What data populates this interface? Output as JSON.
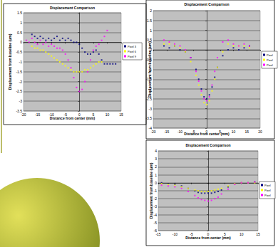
{
  "chart_data": [
    {
      "type": "scatter",
      "title": "Displacement Comparison",
      "x_label": "Distance from center (mm)",
      "y_label": "Displacement from baseline (um)",
      "xlim": [
        -20,
        15
      ],
      "xticks": [
        -20,
        -15,
        -10,
        -5,
        0,
        5,
        10,
        15
      ],
      "ylim": [
        -3.5,
        1.5
      ],
      "yticks": [
        -3.5,
        -3,
        -2.5,
        -2,
        -1.5,
        -1,
        -0.5,
        0,
        0.5,
        1,
        1.5
      ],
      "grid": true,
      "legend": "right",
      "series": [
        {
          "name": "Pixel 3",
          "color": "#000080",
          "x": [
            -17,
            -16,
            -15,
            -14,
            -13,
            -12,
            -11,
            -10,
            -9,
            -8,
            -7,
            -6,
            -5,
            -4,
            -3,
            -2,
            -1,
            0,
            1,
            2,
            3,
            4,
            5,
            6,
            7,
            8,
            9,
            10,
            11,
            12,
            13
          ],
          "values": [
            0.4,
            0.3,
            0.2,
            0.3,
            0.2,
            0.1,
            0.2,
            0.1,
            0.2,
            0.3,
            0.1,
            0.2,
            0.1,
            0.2,
            0.1,
            0.0,
            0.0,
            -0.1,
            -0.3,
            -0.5,
            -0.6,
            -0.6,
            -0.5,
            -0.4,
            -0.6,
            -0.9,
            -1.1,
            -1.1,
            -1.1,
            -1.1,
            -1.1
          ]
        },
        {
          "name": "Pixel 6",
          "color": "#FFFF00",
          "x": [
            -17,
            -16,
            -15,
            -14,
            -13,
            -12,
            -11,
            -10,
            -9,
            -8,
            -7,
            -6,
            -5,
            -4,
            -3,
            -2,
            -1,
            0,
            1,
            2,
            3,
            4,
            5,
            6,
            7,
            8
          ],
          "values": [
            -0.2,
            -0.3,
            -0.3,
            -0.4,
            -0.4,
            -0.5,
            -0.6,
            -0.7,
            -0.8,
            -0.9,
            -1.0,
            -1.1,
            -1.2,
            -1.3,
            -1.4,
            -1.5,
            -1.5,
            -1.5,
            -1.5,
            -1.4,
            -1.4,
            -1.3,
            -1.2,
            -1.1,
            -1.0,
            -1.0
          ]
        },
        {
          "name": "Pixel 9",
          "color": "#FF00FF",
          "x": [
            -19,
            -18,
            -17,
            -16,
            -15,
            -14,
            -13,
            -12,
            -11,
            -10,
            -9,
            -8,
            -7,
            -6,
            -5,
            -4,
            -3,
            -2,
            -1,
            0,
            1,
            2,
            3,
            4,
            5,
            6,
            7,
            8,
            9,
            10
          ],
          "values": [
            0.1,
            0.0,
            0.2,
            0.0,
            -0.1,
            0.1,
            -0.1,
            0.0,
            -0.2,
            -0.1,
            -0.2,
            -0.3,
            -0.3,
            -0.4,
            -0.6,
            -0.9,
            -1.3,
            -1.8,
            -2.3,
            -2.5,
            -2.4,
            -2.0,
            -1.5,
            -0.9,
            -0.4,
            -0.2,
            -0.1,
            0.1,
            0.3,
            0.6
          ]
        }
      ]
    },
    {
      "type": "scatter",
      "title": "Displacement Comparison",
      "x_label": "Distance from center (mm)",
      "y_label": "Displacement from baseline (um)",
      "xlim": [
        -20,
        20
      ],
      "xticks": [
        -20,
        -15,
        -10,
        -5,
        0,
        5,
        10,
        15,
        20
      ],
      "ylim": [
        -4,
        2
      ],
      "yticks": [
        -4,
        -3.5,
        -3,
        -2.5,
        -2,
        -1.5,
        -1,
        -0.5,
        0,
        0.5,
        1,
        1.5,
        2
      ],
      "grid": true,
      "legend": "right",
      "series": [
        {
          "name": "Pixel",
          "color": "#000080",
          "x": [
            -16,
            -14,
            -12,
            -10,
            -8,
            -6,
            -4,
            -3,
            -2,
            -1,
            0,
            1,
            2,
            3,
            4,
            6,
            8,
            10,
            12,
            14,
            16
          ],
          "values": [
            0.2,
            0.1,
            0.2,
            0.0,
            -0.1,
            -0.4,
            -1.0,
            -1.5,
            -2.0,
            -2.4,
            -2.5,
            -2.3,
            -1.9,
            -1.4,
            -0.9,
            -0.3,
            0.0,
            0.1,
            0.0,
            0.1,
            0.2
          ]
        },
        {
          "name": "Pixel",
          "color": "#FFFF00",
          "x": [
            -16,
            -14,
            -12,
            -10,
            -8,
            -6,
            -4,
            -3,
            -2,
            -1,
            0,
            1,
            2,
            3,
            4,
            6,
            8,
            10,
            12,
            14,
            16
          ],
          "values": [
            0.3,
            0.3,
            0.2,
            0.1,
            -0.1,
            -0.6,
            -1.3,
            -1.8,
            -2.3,
            -2.7,
            -2.8,
            -2.6,
            -2.1,
            -1.5,
            -0.9,
            -0.1,
            0.3,
            0.2,
            0.2,
            0.2,
            0.1
          ]
        },
        {
          "name": "Pixel",
          "color": "#FF00FF",
          "x": [
            -16,
            -14,
            -12,
            -10,
            -8,
            -6,
            -4,
            -3,
            -2,
            -1,
            0,
            1,
            2,
            3,
            4,
            6,
            8,
            10,
            12,
            14,
            16
          ],
          "values": [
            0.5,
            0.4,
            0.3,
            0.2,
            0.0,
            -0.4,
            -1.1,
            -1.6,
            -2.1,
            -2.5,
            -2.6,
            -2.4,
            -1.8,
            -1.1,
            -0.4,
            0.4,
            0.5,
            0.3,
            0.2,
            0.3,
            0.2
          ]
        }
      ]
    },
    {
      "type": "scatter",
      "title": "Displacement Comparison",
      "x_label": "Distance from center (mm)",
      "y_label": "Displacement from baseline (um)",
      "xlim": [
        -15,
        15
      ],
      "xticks": [
        -15,
        -10,
        -5,
        0,
        5,
        10,
        15
      ],
      "ylim": [
        -6,
        4
      ],
      "yticks": [
        -6,
        -5,
        -4,
        -3,
        -2,
        -1,
        0,
        1,
        2,
        3,
        4
      ],
      "grid": true,
      "legend": "right",
      "series": [
        {
          "name": "Pixel",
          "color": "#000080",
          "x": [
            -14,
            -12,
            -10,
            -8,
            -6,
            -4,
            -3,
            -2,
            -1,
            0,
            1,
            2,
            3,
            4,
            6,
            8,
            10,
            12,
            14
          ],
          "values": [
            0.0,
            -0.1,
            -0.2,
            -0.4,
            -0.7,
            -1.0,
            -1.2,
            -1.3,
            -1.3,
            -1.3,
            -1.3,
            -1.2,
            -1.1,
            -0.9,
            -0.5,
            -0.1,
            0.0,
            0.0,
            0.1
          ]
        },
        {
          "name": "Pixel",
          "color": "#FFFF00",
          "x": [
            -14,
            -12,
            -10,
            -8,
            -6,
            -4,
            -3,
            -2,
            -1,
            0,
            1,
            2,
            3,
            4,
            6,
            8,
            10,
            12,
            14
          ],
          "values": [
            -0.1,
            -0.2,
            -0.3,
            -0.5,
            -0.7,
            -0.9,
            -1.0,
            -1.1,
            -1.1,
            -1.1,
            -1.0,
            -0.9,
            -0.8,
            -0.7,
            -0.4,
            -0.1,
            0.0,
            0.0,
            0.0
          ]
        },
        {
          "name": "Pixel",
          "color": "#FF00FF",
          "x": [
            -14,
            -12,
            -10,
            -8,
            -6,
            -4,
            -3,
            -2,
            -1,
            0,
            1,
            2,
            3,
            4,
            6,
            8,
            10,
            12,
            14
          ],
          "values": [
            -0.3,
            -0.4,
            -0.5,
            -0.7,
            -1.1,
            -1.6,
            -1.9,
            -2.1,
            -2.2,
            -2.3,
            -2.2,
            -2.0,
            -1.8,
            -1.4,
            -0.8,
            -0.2,
            0.0,
            0.0,
            0.1
          ]
        }
      ]
    }
  ]
}
